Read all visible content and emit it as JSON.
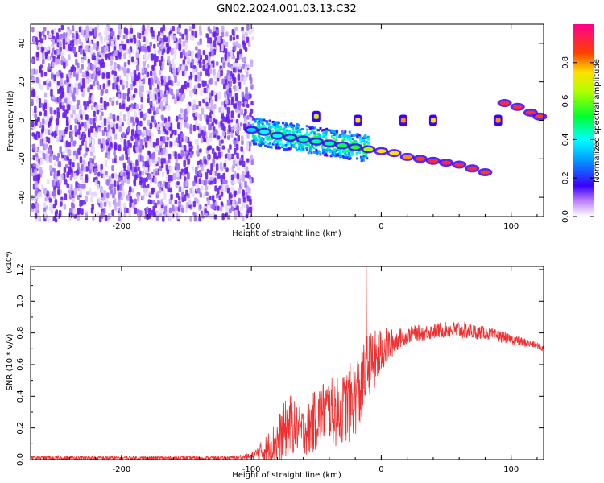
{
  "title": "GN02.2024.001.03.13.C32",
  "chart_data": [
    {
      "type": "heatmap",
      "xlabel": "Height of straight line (km)",
      "ylabel": "Frequency (Hz)",
      "xlim": [
        -270,
        125
      ],
      "ylim": [
        -50,
        50
      ],
      "xticks": [
        -200,
        -100,
        0,
        100
      ],
      "xtick_labels": [
        "-200",
        "-100",
        "0",
        "100"
      ],
      "yticks": [
        -40,
        -20,
        0,
        20,
        40
      ],
      "ytick_labels": [
        "-40",
        "-20",
        "0",
        "20",
        "40"
      ],
      "colorbar": {
        "label": "Normalized spectral amplitude",
        "range": [
          0,
          1
        ],
        "ticks": [
          0.0,
          0.2,
          0.4,
          0.6,
          0.8
        ],
        "tick_labels": [
          "0.0",
          "0.2",
          "0.4",
          "0.6",
          "0.8"
        ]
      },
      "noise_region": {
        "x": [
          -270,
          -100
        ],
        "y": [
          -50,
          50
        ],
        "amplitude": 0.15
      },
      "signal_track": [
        {
          "x": -100,
          "y": -5,
          "amplitude": 0.35
        },
        {
          "x": -90,
          "y": -6,
          "amplitude": 0.4
        },
        {
          "x": -80,
          "y": -8,
          "amplitude": 0.4
        },
        {
          "x": -70,
          "y": -9,
          "amplitude": 0.45
        },
        {
          "x": -60,
          "y": -10,
          "amplitude": 0.45
        },
        {
          "x": -50,
          "y": -11,
          "amplitude": 0.45
        },
        {
          "x": -40,
          "y": -12,
          "amplitude": 0.45
        },
        {
          "x": -30,
          "y": -13,
          "amplitude": 0.5
        },
        {
          "x": -20,
          "y": -14,
          "amplitude": 0.55
        },
        {
          "x": -10,
          "y": -15,
          "amplitude": 0.65
        },
        {
          "x": 0,
          "y": -16,
          "amplitude": 0.75
        },
        {
          "x": 10,
          "y": -17,
          "amplitude": 0.75
        },
        {
          "x": 20,
          "y": -19,
          "amplitude": 0.8
        },
        {
          "x": 30,
          "y": -20,
          "amplitude": 0.85
        },
        {
          "x": 40,
          "y": -21,
          "amplitude": 0.9
        },
        {
          "x": 50,
          "y": -22,
          "amplitude": 0.9
        },
        {
          "x": 60,
          "y": -23,
          "amplitude": 0.9
        },
        {
          "x": 70,
          "y": -25,
          "amplitude": 0.9
        },
        {
          "x": 80,
          "y": -27,
          "amplitude": 0.85
        },
        {
          "x": 95,
          "y": 9,
          "amplitude": 0.9
        },
        {
          "x": 105,
          "y": 7,
          "amplitude": 0.9
        },
        {
          "x": 115,
          "y": 4,
          "amplitude": 0.9
        },
        {
          "x": 122,
          "y": 2,
          "amplitude": 0.85
        }
      ],
      "blobs": [
        {
          "x": -50,
          "y": 2,
          "amplitude": 0.7
        },
        {
          "x": -18,
          "y": 0,
          "amplitude": 0.75
        },
        {
          "x": 17,
          "y": 0,
          "amplitude": 0.8
        },
        {
          "x": 40,
          "y": 0,
          "amplitude": 0.75
        },
        {
          "x": 90,
          "y": 0,
          "amplitude": 0.8
        }
      ]
    },
    {
      "type": "line",
      "xlabel": "Height of straight line (km)",
      "ylabel": "SNR (10 * v/v)",
      "y_multiplier": "(x10⁴)",
      "xlim": [
        -270,
        125
      ],
      "ylim": [
        0,
        1.22
      ],
      "xticks": [
        -200,
        -100,
        0,
        100
      ],
      "xtick_labels": [
        "-200",
        "-100",
        "0",
        "100"
      ],
      "yticks": [
        0.0,
        0.2,
        0.4,
        0.6,
        0.8,
        1.0,
        1.2
      ],
      "ytick_labels": [
        "0.0",
        "0.2",
        "0.4",
        "0.6",
        "0.8",
        "1.0",
        "1.2"
      ],
      "series": [
        {
          "color": "#f03030",
          "x": [
            -270,
            -240,
            -200,
            -160,
            -120,
            -100,
            -90,
            -80,
            -75,
            -70,
            -65,
            -60,
            -55,
            -50,
            -45,
            -40,
            -35,
            -30,
            -25,
            -20,
            -15,
            -12,
            -10,
            -5,
            0,
            5,
            10,
            15,
            20,
            25,
            30,
            40,
            50,
            60,
            70,
            80,
            90,
            100,
            110,
            120,
            125
          ],
          "y": [
            0.01,
            0.01,
            0.01,
            0.01,
            0.01,
            0.02,
            0.06,
            0.12,
            0.18,
            0.22,
            0.2,
            0.18,
            0.2,
            0.26,
            0.3,
            0.32,
            0.3,
            0.32,
            0.35,
            0.4,
            0.45,
            0.55,
            0.6,
            0.62,
            0.68,
            0.72,
            0.74,
            0.77,
            0.78,
            0.8,
            0.8,
            0.81,
            0.82,
            0.82,
            0.81,
            0.8,
            0.78,
            0.76,
            0.74,
            0.72,
            0.7
          ],
          "spread": [
            0.015,
            0.015,
            0.012,
            0.012,
            0.012,
            0.02,
            0.08,
            0.15,
            0.18,
            0.2,
            0.15,
            0.15,
            0.18,
            0.2,
            0.2,
            0.2,
            0.22,
            0.22,
            0.25,
            0.25,
            0.25,
            0.25,
            0.2,
            0.2,
            0.15,
            0.12,
            0.08,
            0.06,
            0.05,
            0.05,
            0.05,
            0.05,
            0.05,
            0.06,
            0.05,
            0.04,
            0.04,
            0.03,
            0.03,
            0.02,
            0.02
          ]
        }
      ],
      "spike": {
        "x": -11.5,
        "y": 1.22
      }
    }
  ]
}
